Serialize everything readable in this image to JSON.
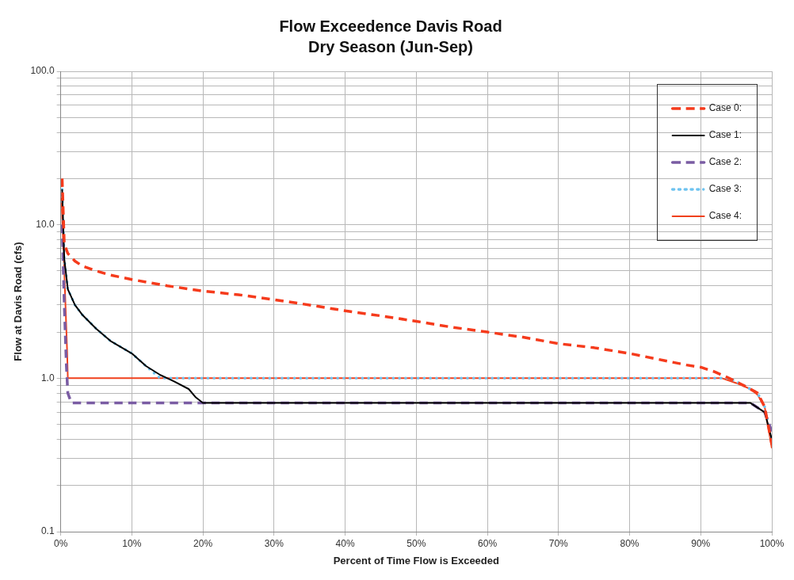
{
  "chart_data": {
    "type": "line",
    "title": "Flow Exceedence Davis Road",
    "subtitle": "Dry Season (Jun-Sep)",
    "xlabel": "Percent of Time Flow is Exceeded",
    "ylabel": "Flow at Davis Road (cfs)",
    "log": "y",
    "grid": true,
    "legend": "top right",
    "marker": "none",
    "xlim": [
      0,
      100
    ],
    "xticks": [
      {
        "value": 0,
        "label": "0%"
      },
      {
        "value": 10,
        "label": "10%"
      },
      {
        "value": 20,
        "label": "20%"
      },
      {
        "value": 30,
        "label": "30%"
      },
      {
        "value": 40,
        "label": "40%"
      },
      {
        "value": 50,
        "label": "50%"
      },
      {
        "value": 60,
        "label": "60%"
      },
      {
        "value": 70,
        "label": "70%"
      },
      {
        "value": 80,
        "label": "80%"
      },
      {
        "value": 90,
        "label": "90%"
      },
      {
        "value": 100,
        "label": "100%"
      }
    ],
    "ylim": [
      0.1,
      100
    ],
    "yticks": [
      {
        "value": 0.1,
        "label": "0.1"
      },
      {
        "value": 0.2,
        "label": null
      },
      {
        "value": 0.3,
        "label": null
      },
      {
        "value": 0.4,
        "label": null
      },
      {
        "value": 0.5,
        "label": null
      },
      {
        "value": 0.6,
        "label": null
      },
      {
        "value": 0.7,
        "label": null
      },
      {
        "value": 0.8,
        "label": null
      },
      {
        "value": 0.9,
        "label": null
      },
      {
        "value": 1,
        "label": "1.0"
      },
      {
        "value": 2,
        "label": null
      },
      {
        "value": 3,
        "label": null
      },
      {
        "value": 4,
        "label": null
      },
      {
        "value": 5,
        "label": null
      },
      {
        "value": 6,
        "label": null
      },
      {
        "value": 7,
        "label": null
      },
      {
        "value": 8,
        "label": null
      },
      {
        "value": 9,
        "label": null
      },
      {
        "value": 10,
        "label": "10.0"
      },
      {
        "value": 20,
        "label": null
      },
      {
        "value": 30,
        "label": null
      },
      {
        "value": 40,
        "label": null
      },
      {
        "value": 50,
        "label": null
      },
      {
        "value": 60,
        "label": null
      },
      {
        "value": 70,
        "label": null
      },
      {
        "value": 80,
        "label": null
      },
      {
        "value": 90,
        "label": null
      },
      {
        "value": 100,
        "label": "100.0"
      }
    ],
    "series": [
      {
        "name": "Case 0:",
        "color": "#f53b1c",
        "line_style": "dashed",
        "x": [
          0.2,
          0.5,
          1,
          2,
          3,
          5,
          7,
          10,
          15,
          20,
          25,
          30,
          35,
          40,
          45,
          50,
          55,
          60,
          65,
          70,
          75,
          80,
          85,
          88,
          90,
          92,
          94,
          96,
          98,
          99,
          100
        ],
        "values": [
          20,
          7.5,
          6.5,
          5.8,
          5.4,
          5,
          4.7,
          4.4,
          4,
          3.7,
          3.5,
          3.25,
          3,
          2.75,
          2.55,
          2.35,
          2.15,
          2,
          1.85,
          1.68,
          1.58,
          1.45,
          1.3,
          1.22,
          1.18,
          1.1,
          1,
          0.9,
          0.8,
          0.65,
          0.37
        ]
      },
      {
        "name": "Case 1:",
        "color": "#000000",
        "line_style": "solid",
        "x": [
          0.2,
          0.5,
          1,
          2,
          3,
          5,
          7,
          10,
          12,
          14,
          15,
          16,
          18,
          19,
          20,
          30,
          40,
          50,
          60,
          70,
          80,
          90,
          97,
          99,
          100
        ],
        "values": [
          17,
          6,
          3.8,
          3,
          2.6,
          2.1,
          1.75,
          1.45,
          1.2,
          1.05,
          1,
          0.95,
          0.85,
          0.75,
          0.69,
          0.69,
          0.69,
          0.69,
          0.69,
          0.69,
          0.69,
          0.69,
          0.69,
          0.6,
          0.4
        ]
      },
      {
        "name": "Case 2:",
        "color": "#7a5ca3",
        "line_style": "dashed",
        "x": [
          0.2,
          0.5,
          0.8,
          1,
          1.5,
          10,
          20,
          30,
          40,
          50,
          60,
          70,
          80,
          90,
          97,
          99,
          100
        ],
        "values": [
          10,
          3,
          1.2,
          0.8,
          0.69,
          0.69,
          0.69,
          0.69,
          0.69,
          0.69,
          0.69,
          0.69,
          0.69,
          0.69,
          0.69,
          0.6,
          0.45
        ]
      },
      {
        "name": "Case 3:",
        "color": "#6ec3f0",
        "line_style": "dotted",
        "x": [
          0.2,
          0.5,
          1,
          2,
          3,
          5,
          7,
          10,
          12,
          14,
          20,
          30,
          40,
          50,
          60,
          70,
          80,
          90,
          94,
          96,
          98,
          99,
          100
        ],
        "values": [
          17,
          6,
          3.8,
          3,
          2.6,
          2.1,
          1.75,
          1.45,
          1.2,
          1,
          1,
          1,
          1,
          1,
          1,
          1,
          1,
          1,
          1,
          0.9,
          0.8,
          0.65,
          0.4
        ]
      },
      {
        "name": "Case 4:",
        "color": "#f0401c",
        "line_style": "solid",
        "x": [
          0.1,
          0.5,
          0.9,
          1,
          10,
          20,
          30,
          40,
          50,
          60,
          70,
          80,
          90,
          93,
          95,
          97,
          98,
          99,
          100
        ],
        "values": [
          15,
          5,
          1.5,
          1,
          1,
          1,
          1,
          1,
          1,
          1,
          1,
          1,
          1,
          1,
          0.93,
          0.85,
          0.78,
          0.65,
          0.35
        ]
      }
    ]
  }
}
